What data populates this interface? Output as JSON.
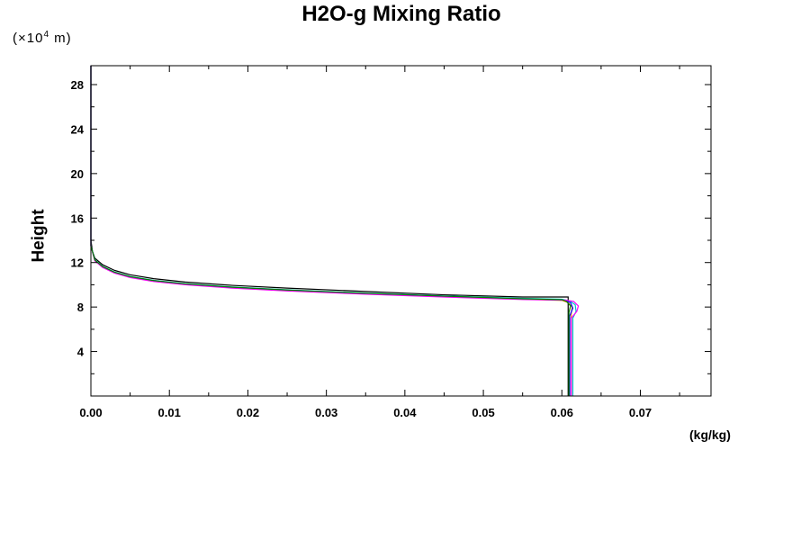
{
  "chart_data": {
    "type": "line",
    "title": "H2O-g Mixing Ratio",
    "ylabel": "Height",
    "y_unit_prefix": "(×10",
    "y_unit_exp": "4",
    "y_unit_suffix": " m)",
    "xlabel_unit": "(kg/kg)",
    "xlim": [
      0,
      0.079
    ],
    "ylim": [
      0,
      29.7
    ],
    "x_ticks": [
      0.0,
      0.01,
      0.02,
      0.03,
      0.04,
      0.05,
      0.06,
      0.07
    ],
    "x_tick_labels": [
      "0.00",
      "0.01",
      "0.02",
      "0.03",
      "0.04",
      "0.05",
      "0.06",
      "0.07"
    ],
    "y_ticks": [
      4,
      8,
      12,
      16,
      20,
      24,
      28
    ],
    "y_tick_labels": [
      "4",
      "8",
      "12",
      "16",
      "20",
      "24",
      "28"
    ],
    "grid": false,
    "series": [
      {
        "color": "#000000",
        "points": [
          [
            0.0608,
            0
          ],
          [
            0.0608,
            8.0
          ],
          [
            0.0608,
            8.5
          ],
          [
            0.0608,
            8.9
          ],
          [
            0.055,
            8.9
          ],
          [
            0.045,
            9.1
          ],
          [
            0.035,
            9.4
          ],
          [
            0.025,
            9.7
          ],
          [
            0.018,
            9.95
          ],
          [
            0.012,
            10.25
          ],
          [
            0.008,
            10.55
          ],
          [
            0.005,
            10.9
          ],
          [
            0.003,
            11.3
          ],
          [
            0.0015,
            11.8
          ],
          [
            0.0005,
            12.4
          ],
          [
            0.0002,
            13.0
          ],
          [
            0,
            14.0
          ],
          [
            0,
            29.7
          ]
        ]
      },
      {
        "color": "#ff8c00",
        "points": [
          [
            0.0612,
            0
          ],
          [
            0.0612,
            7.4
          ],
          [
            0.0613,
            8.0
          ],
          [
            0.0608,
            8.4
          ],
          [
            0.06,
            8.6
          ],
          [
            0.055,
            8.7
          ],
          [
            0.045,
            8.95
          ],
          [
            0.035,
            9.2
          ],
          [
            0.025,
            9.5
          ],
          [
            0.018,
            9.75
          ],
          [
            0.012,
            10.05
          ],
          [
            0.008,
            10.35
          ],
          [
            0.005,
            10.7
          ],
          [
            0.003,
            11.1
          ],
          [
            0.0015,
            11.6
          ],
          [
            0.0005,
            12.2
          ],
          [
            0,
            13.5
          ],
          [
            0,
            29.7
          ]
        ]
      },
      {
        "color": "#00c8c8",
        "points": [
          [
            0.0614,
            0
          ],
          [
            0.0614,
            7.0
          ],
          [
            0.0618,
            7.6
          ],
          [
            0.0617,
            8.2
          ],
          [
            0.061,
            8.55
          ],
          [
            0.06,
            8.7
          ],
          [
            0.055,
            8.78
          ],
          [
            0.045,
            9.0
          ],
          [
            0.035,
            9.25
          ],
          [
            0.025,
            9.55
          ],
          [
            0.018,
            9.8
          ],
          [
            0.012,
            10.1
          ],
          [
            0.008,
            10.4
          ],
          [
            0.005,
            10.75
          ],
          [
            0.003,
            11.15
          ],
          [
            0.0015,
            11.65
          ],
          [
            0.0005,
            12.25
          ],
          [
            0,
            13.5
          ],
          [
            0,
            29.7
          ]
        ]
      },
      {
        "color": "#0000ff",
        "points": [
          [
            0.061,
            0
          ],
          [
            0.061,
            7.2
          ],
          [
            0.0614,
            7.9
          ],
          [
            0.0611,
            8.4
          ],
          [
            0.0602,
            8.62
          ],
          [
            0.055,
            8.72
          ],
          [
            0.045,
            8.97
          ],
          [
            0.035,
            9.22
          ],
          [
            0.025,
            9.52
          ],
          [
            0.018,
            9.77
          ],
          [
            0.012,
            10.07
          ],
          [
            0.008,
            10.37
          ],
          [
            0.005,
            10.72
          ],
          [
            0.003,
            11.12
          ],
          [
            0.0015,
            11.62
          ],
          [
            0.0005,
            12.22
          ],
          [
            0,
            13.5
          ],
          [
            0,
            29.7
          ]
        ]
      },
      {
        "color": "#ff00ff",
        "points": [
          [
            0.0612,
            0
          ],
          [
            0.0612,
            7.0
          ],
          [
            0.0619,
            7.6
          ],
          [
            0.0621,
            8.1
          ],
          [
            0.0615,
            8.5
          ],
          [
            0.0605,
            8.62
          ],
          [
            0.055,
            8.68
          ],
          [
            0.045,
            8.9
          ],
          [
            0.035,
            9.15
          ],
          [
            0.025,
            9.45
          ],
          [
            0.018,
            9.7
          ],
          [
            0.012,
            10.0
          ],
          [
            0.008,
            10.3
          ],
          [
            0.005,
            10.65
          ],
          [
            0.003,
            11.05
          ],
          [
            0.0015,
            11.55
          ],
          [
            0.0005,
            12.15
          ],
          [
            0,
            13.5
          ],
          [
            0,
            29.7
          ]
        ]
      },
      {
        "color": "#008000",
        "points": [
          [
            0.0609,
            0
          ],
          [
            0.0609,
            7.5
          ],
          [
            0.0611,
            8.1
          ],
          [
            0.0606,
            8.5
          ],
          [
            0.06,
            8.66
          ],
          [
            0.055,
            8.74
          ],
          [
            0.045,
            8.98
          ],
          [
            0.035,
            9.23
          ],
          [
            0.025,
            9.53
          ],
          [
            0.018,
            9.78
          ],
          [
            0.012,
            10.08
          ],
          [
            0.008,
            10.38
          ],
          [
            0.005,
            10.73
          ],
          [
            0.003,
            11.13
          ],
          [
            0.0015,
            11.63
          ],
          [
            0.0005,
            12.23
          ],
          [
            0,
            13.5
          ],
          [
            0,
            29.7
          ]
        ]
      }
    ]
  }
}
